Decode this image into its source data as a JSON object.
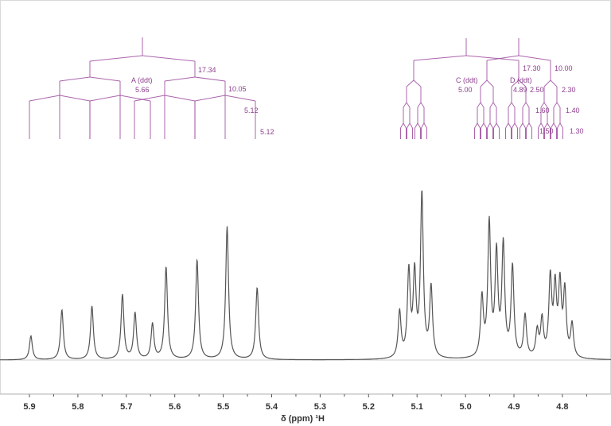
{
  "colors": {
    "spectrum": "#555555",
    "tree": "#9c4a9c",
    "label": "#8e3f8e",
    "baseline": "#cfcfcf",
    "axis_text": "#333333"
  },
  "axis": {
    "xlabel": "δ (ppm) ¹H",
    "ticks": [
      "5.9",
      "5.8",
      "5.7",
      "5.6",
      "5.5",
      "5.4",
      "5.3",
      "5.2",
      "5.1",
      "5.0",
      "4.9",
      "4.8"
    ]
  },
  "multiplets": [
    {
      "id": "A",
      "label": "A (ddt)",
      "shift": "5.66",
      "couplings": [
        "17.34",
        "10.05",
        "5.12",
        "5.12"
      ]
    },
    {
      "id": "C",
      "label": "C (ddt)",
      "shift": "5.00",
      "couplings": [
        "17.30",
        "2.50",
        "1.60",
        "1.50"
      ]
    },
    {
      "id": "D",
      "label": "D (ddt)",
      "shift": "4.89",
      "couplings": [
        "10.00",
        "2.30",
        "1.40",
        "1.30"
      ]
    }
  ],
  "chart_data": {
    "type": "line",
    "title": "",
    "xlabel": "δ (ppm) ¹H",
    "ylabel": "",
    "xlim": [
      5.95,
      4.74
    ],
    "x_reversed": true,
    "grid": false,
    "x_ticks": [
      5.9,
      5.8,
      5.7,
      5.6,
      5.5,
      5.4,
      5.3,
      5.2,
      5.1,
      5.0,
      4.9,
      4.8
    ],
    "peaks": [
      {
        "ppm": 5.897,
        "height": 0.13
      },
      {
        "ppm": 5.833,
        "height": 0.27
      },
      {
        "ppm": 5.771,
        "height": 0.29
      },
      {
        "ppm": 5.708,
        "height": 0.35
      },
      {
        "ppm": 5.682,
        "height": 0.25
      },
      {
        "ppm": 5.646,
        "height": 0.19
      },
      {
        "ppm": 5.618,
        "height": 0.5
      },
      {
        "ppm": 5.554,
        "height": 0.54
      },
      {
        "ppm": 5.492,
        "height": 0.72
      },
      {
        "ppm": 5.43,
        "height": 0.39
      },
      {
        "ppm": 5.136,
        "height": 0.25
      },
      {
        "ppm": 5.117,
        "height": 0.46
      },
      {
        "ppm": 5.105,
        "height": 0.44
      },
      {
        "ppm": 5.09,
        "height": 0.88
      },
      {
        "ppm": 5.071,
        "height": 0.38
      },
      {
        "ppm": 4.966,
        "height": 0.32
      },
      {
        "ppm": 4.951,
        "height": 0.72
      },
      {
        "ppm": 4.936,
        "height": 0.55
      },
      {
        "ppm": 4.922,
        "height": 0.6
      },
      {
        "ppm": 4.903,
        "height": 0.49
      },
      {
        "ppm": 4.877,
        "height": 0.23
      },
      {
        "ppm": 4.852,
        "height": 0.14
      },
      {
        "ppm": 4.842,
        "height": 0.2
      },
      {
        "ppm": 4.825,
        "height": 0.42
      },
      {
        "ppm": 4.815,
        "height": 0.36
      },
      {
        "ppm": 4.805,
        "height": 0.38
      },
      {
        "ppm": 4.795,
        "height": 0.35
      },
      {
        "ppm": 4.78,
        "height": 0.18
      }
    ],
    "annotations": [
      "A (ddt) 5.66 J=17.34,10.05,5.12,5.12",
      "C (ddt) 5.00 J=17.30,2.50,1.60,1.50",
      "D (ddt) 4.89 J=10.00,2.30,1.40,1.30"
    ]
  }
}
